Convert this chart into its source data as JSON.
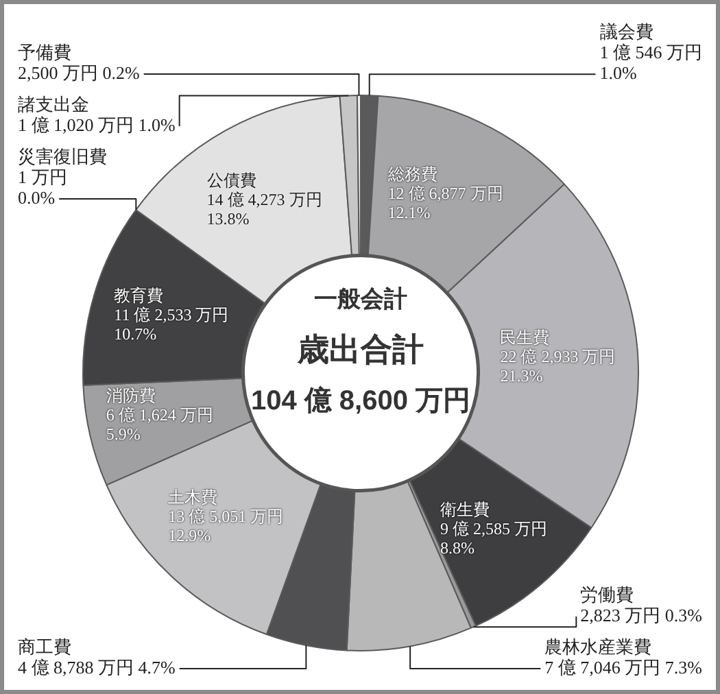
{
  "chart_data": {
    "type": "donut",
    "categories": [
      "議会費",
      "総務費",
      "民生費",
      "衛生費",
      "労働費",
      "農林水産業費",
      "商工費",
      "土木費",
      "消防費",
      "教育費",
      "災害復旧費",
      "公債費",
      "諸支出金",
      "予備費"
    ],
    "values": [
      1.0,
      12.1,
      21.3,
      8.8,
      0.3,
      7.3,
      4.7,
      12.9,
      5.9,
      10.7,
      0.0,
      13.8,
      1.0,
      0.2
    ],
    "colors": [
      "#5a5a5c",
      "#a6a6a8",
      "#b6b6ba",
      "#3e3e40",
      "#9a9a9a",
      "#b8b8b8",
      "#505052",
      "#c2c2c4",
      "#a0a0a2",
      "#414143",
      "#555555",
      "#e2e2e2",
      "#c6c6c6",
      "#efefef"
    ],
    "value_labels": [
      "1 億 546 万円\n1.0%",
      "12 億 6,877 万円\n12.1%",
      "22 億 2,933 万円\n21.3%",
      "9 億 2,585 万円\n8.8%",
      "2,823 万円 0.3%",
      "7 億 7,046 万円 7.3%",
      "4 億 8,788 万円 4.7%",
      "13 億 5,051 万円\n12.9%",
      "6 億 1,624 万円\n5.9%",
      "11 億 2,533 万円\n10.7%",
      "1 万円\n0.0%",
      "14 億 4,273 万円\n13.8%",
      "1 億 1,020 万円 1.0%",
      "2,500 万円 0.2%"
    ],
    "annotations": [
      "一般会計",
      "歳出合計",
      "104 億 8,600 万円"
    ]
  }
}
